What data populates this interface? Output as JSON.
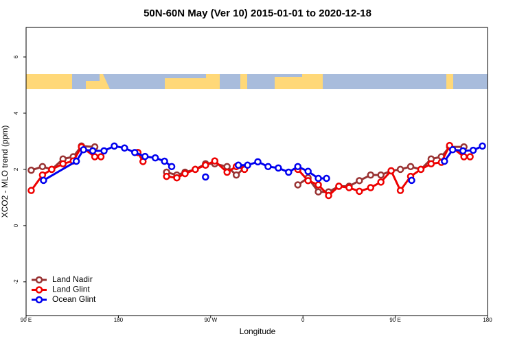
{
  "chart_data": {
    "type": "line",
    "title": "50N-60N May (Ver 10)   2015-01-01 to 2020-12-18",
    "x_label": "Longitude",
    "y_label": "XCO2 - MLO trend (ppm)",
    "xlim": [
      90,
      540
    ],
    "ylim": [
      -3.2,
      7.05
    ],
    "xticks": [
      {
        "value": 90,
        "label": "90 E"
      },
      180,
      {
        "value": 270,
        "label": "90 W"
      },
      {
        "value": 360,
        "label": "0"
      },
      {
        "value": 450,
        "label": "90 E"
      },
      {
        "value": 540,
        "label": "180"
      }
    ],
    "yticks": [
      -2,
      0,
      2,
      4,
      6
    ],
    "legend": "bottom-left",
    "series": [
      {
        "name": "Land Nadir",
        "color": "#993333",
        "x": [
          95,
          106,
          115,
          126,
          136,
          144,
          157,
          null,
          199,
          null,
          227,
          237,
          245,
          255,
          265,
          274,
          286,
          295,
          303,
          null,
          355,
          365,
          375,
          385,
          395,
          405,
          415,
          426,
          436,
          446,
          455,
          465,
          475,
          485,
          495,
          503,
          517
        ],
        "values": [
          1.97,
          2.1,
          2.0,
          2.37,
          2.45,
          2.83,
          2.8,
          null,
          2.6,
          null,
          1.9,
          1.8,
          1.9,
          2.0,
          2.2,
          2.2,
          2.1,
          1.8,
          2.05,
          null,
          1.45,
          1.7,
          1.2,
          1.2,
          1.4,
          1.4,
          1.6,
          1.8,
          1.8,
          1.95,
          2.0,
          2.1,
          2.0,
          2.37,
          2.45,
          2.8,
          2.8
        ]
      },
      {
        "name": "Land Glint",
        "color": "#ee0000",
        "x": [
          95,
          106,
          115,
          126,
          136,
          144,
          157,
          163,
          null,
          199,
          204,
          null,
          227,
          237,
          245,
          255,
          265,
          274,
          286,
          295,
          303,
          null,
          355,
          365,
          375,
          385,
          395,
          405,
          415,
          426,
          436,
          446,
          455,
          465,
          475,
          485,
          495,
          503,
          517,
          523
        ],
        "values": [
          1.25,
          1.8,
          2.0,
          2.2,
          2.3,
          2.8,
          2.45,
          2.45,
          null,
          2.6,
          2.28,
          null,
          1.75,
          1.7,
          1.85,
          2.0,
          2.15,
          2.3,
          1.9,
          2.1,
          2.0,
          null,
          2.0,
          1.6,
          1.45,
          1.07,
          1.4,
          1.35,
          1.22,
          1.35,
          1.55,
          1.95,
          1.25,
          1.75,
          2.0,
          2.2,
          2.25,
          2.85,
          2.45,
          2.45
        ]
      },
      {
        "name": "Ocean Glint",
        "color": "#0000ee",
        "x": [
          107,
          139,
          146,
          155,
          166,
          176,
          186,
          196,
          206,
          216,
          225,
          232,
          null,
          265,
          null,
          297,
          306,
          316,
          326,
          336,
          346,
          355,
          365,
          375,
          383,
          null,
          466,
          null,
          498,
          506,
          516,
          526,
          535
        ],
        "values": [
          1.61,
          2.29,
          2.7,
          2.66,
          2.66,
          2.83,
          2.76,
          2.6,
          2.46,
          2.41,
          2.29,
          2.1,
          null,
          1.73,
          null,
          2.15,
          2.15,
          2.27,
          2.1,
          2.05,
          1.9,
          2.1,
          1.93,
          1.68,
          1.68,
          null,
          1.61,
          null,
          2.29,
          2.7,
          2.66,
          2.68,
          2.83
        ]
      }
    ]
  }
}
